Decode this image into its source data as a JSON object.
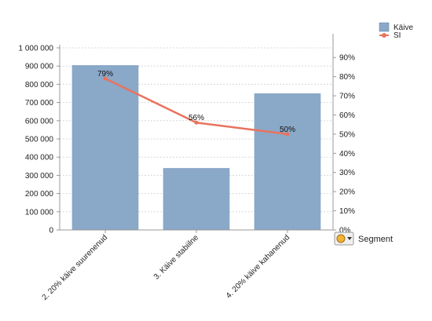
{
  "chart_data": {
    "type": "bar",
    "categories": [
      "2. 20% käive suurenenud",
      "3. Käive stabiilne",
      "4. 20% käive kahanenud"
    ],
    "series": [
      {
        "name": "Käive",
        "type": "bar",
        "axis": "left",
        "values": [
          905000,
          340000,
          750000
        ]
      },
      {
        "name": "SI",
        "type": "line",
        "axis": "right",
        "values": [
          79,
          56,
          50
        ],
        "data_labels": [
          "79%",
          "56%",
          "50%"
        ]
      }
    ],
    "y_left": {
      "ylim": [
        0,
        1000000
      ],
      "ticks": [
        0,
        100000,
        200000,
        300000,
        400000,
        500000,
        600000,
        700000,
        800000,
        900000,
        1000000
      ],
      "tick_labels": [
        "0",
        "100 000",
        "200 000",
        "300 000",
        "400 000",
        "500 000",
        "600 000",
        "700 000",
        "800 000",
        "900 000",
        "1 000 000"
      ]
    },
    "y_right": {
      "ylim": [
        0,
        95
      ],
      "ticks": [
        0,
        10,
        20,
        30,
        40,
        50,
        60,
        70,
        80,
        90
      ],
      "tick_labels": [
        "0%",
        "10%",
        "20%",
        "30%",
        "40%",
        "50%",
        "60%",
        "70%",
        "80%",
        "90%"
      ]
    },
    "grid": true,
    "legend": {
      "placement": "top-right",
      "entries": [
        "Käive",
        "SI"
      ]
    },
    "dimension_label": "Segment",
    "colors": {
      "bar": "#8aa8c8",
      "line": "#e8735e"
    }
  }
}
